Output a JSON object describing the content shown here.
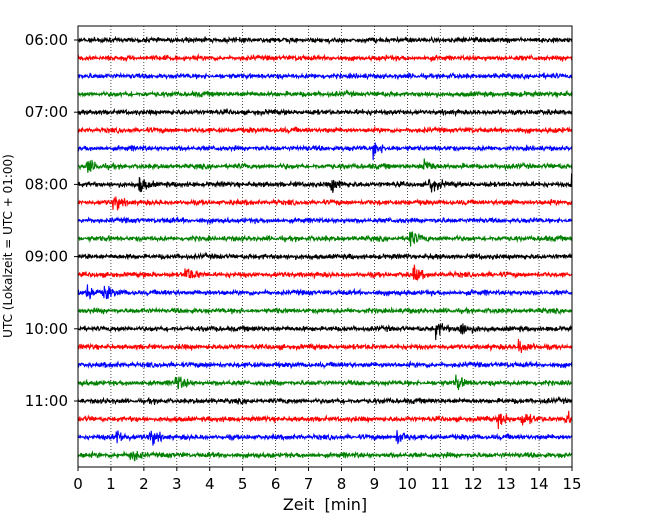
{
  "chart_data": {
    "type": "line",
    "title": "",
    "xlabel": "Zeit  [min]",
    "ylabel": "UTC (Lokalzeit = UTC + 01:00)",
    "xlim": [
      0,
      15
    ],
    "x_ticks": [
      "0",
      "1",
      "2",
      "3",
      "4",
      "5",
      "6",
      "7",
      "8",
      "9",
      "10",
      "11",
      "12",
      "13",
      "14",
      "15"
    ],
    "y_tick_labels": [
      "06:00",
      "07:00",
      "08:00",
      "09:00",
      "10:00",
      "11:00"
    ],
    "grid": "vertical dotted",
    "row_interval_minutes": 15,
    "start_time_utc": "06:00",
    "colors": [
      "#000000",
      "#ff0000",
      "#0000ff",
      "#008000"
    ],
    "rows": [
      {
        "time": "06:00",
        "color": "#000000",
        "events": []
      },
      {
        "time": "06:15",
        "color": "#ff0000",
        "events": []
      },
      {
        "time": "06:30",
        "color": "#0000ff",
        "events": []
      },
      {
        "time": "06:45",
        "color": "#008000",
        "events": []
      },
      {
        "time": "07:00",
        "color": "#000000",
        "events": []
      },
      {
        "time": "07:15",
        "color": "#ff0000",
        "events": []
      },
      {
        "time": "07:30",
        "color": "#0000ff",
        "events": [
          9.0
        ]
      },
      {
        "time": "07:45",
        "color": "#008000",
        "events": [
          0.3,
          10.5
        ]
      },
      {
        "time": "08:00",
        "color": "#000000",
        "events": [
          1.9,
          7.7,
          10.7,
          15.0
        ]
      },
      {
        "time": "08:15",
        "color": "#ff0000",
        "events": [
          1.1
        ]
      },
      {
        "time": "08:30",
        "color": "#0000ff",
        "events": []
      },
      {
        "time": "08:45",
        "color": "#008000",
        "events": [
          10.1
        ]
      },
      {
        "time": "09:00",
        "color": "#000000",
        "events": []
      },
      {
        "time": "09:15",
        "color": "#ff0000",
        "events": [
          3.3,
          10.2
        ]
      },
      {
        "time": "09:30",
        "color": "#0000ff",
        "events": [
          0.3,
          0.8
        ]
      },
      {
        "time": "09:45",
        "color": "#008000",
        "events": []
      },
      {
        "time": "10:00",
        "color": "#000000",
        "events": [
          10.9,
          11.6
        ]
      },
      {
        "time": "10:15",
        "color": "#ff0000",
        "events": [
          13.4
        ]
      },
      {
        "time": "10:30",
        "color": "#0000ff",
        "events": []
      },
      {
        "time": "10:45",
        "color": "#008000",
        "events": [
          3.0,
          11.5
        ]
      },
      {
        "time": "11:00",
        "color": "#000000",
        "events": []
      },
      {
        "time": "11:15",
        "color": "#ff0000",
        "events": [
          12.8,
          13.5,
          14.8
        ]
      },
      {
        "time": "11:30",
        "color": "#0000ff",
        "events": [
          1.2,
          2.2,
          9.7
        ]
      },
      {
        "time": "11:45",
        "color": "#008000",
        "events": [
          1.6
        ]
      }
    ]
  }
}
